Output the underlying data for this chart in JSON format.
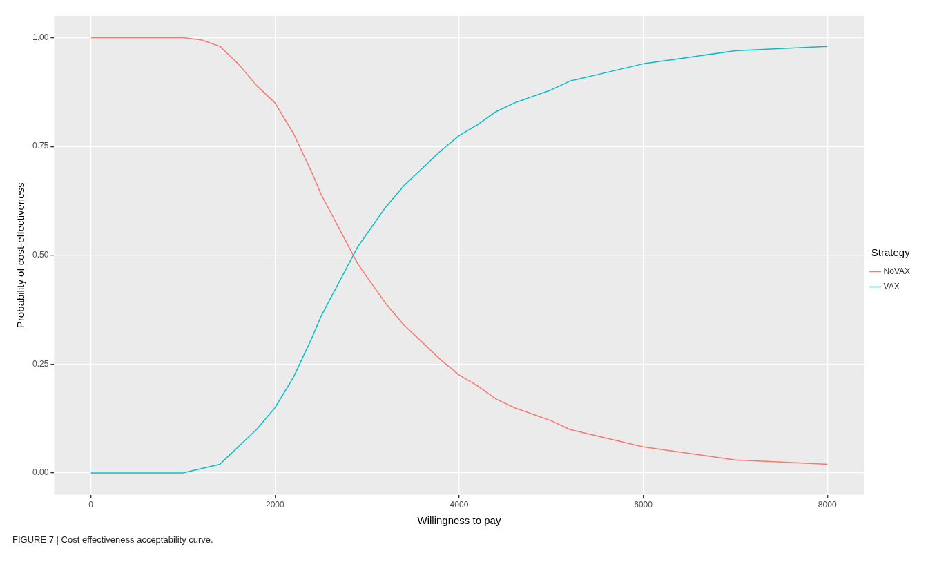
{
  "chart_data": {
    "type": "line",
    "xlabel": "Willingness to pay",
    "ylabel": "Probability of cost-effectiveness",
    "legend_title": "Strategy",
    "legend": "right",
    "grid": true,
    "annotations": [
      "FIGURE 7 | Cost effectiveness acceptability curve."
    ],
    "xlim": [
      -400,
      8400
    ],
    "ylim": [
      -0.05,
      1.05
    ],
    "xticks": [
      0,
      2000,
      4000,
      6000,
      8000
    ],
    "yticks": [
      {
        "value": 0,
        "label": "0.00"
      },
      {
        "value": 0.25,
        "label": "0.25"
      },
      {
        "value": 0.5,
        "label": "0.50"
      },
      {
        "value": 0.75,
        "label": "0.75"
      },
      {
        "value": 1,
        "label": "1.00"
      }
    ],
    "x": [
      0,
      1000,
      1200,
      1400,
      1500,
      1600,
      1800,
      2000,
      2200,
      2400,
      2500,
      2600,
      2700,
      2800,
      2900,
      3000,
      3200,
      3400,
      3600,
      3800,
      4000,
      4200,
      4400,
      4600,
      4800,
      5000,
      5200,
      5500,
      6000,
      6500,
      7000,
      7500,
      8000
    ],
    "series": [
      {
        "name": "NoVAX",
        "color": "#f8766d",
        "values": [
          1,
          1,
          0.995,
          0.98,
          0.96,
          0.94,
          0.89,
          0.85,
          0.78,
          0.69,
          0.64,
          0.6,
          0.56,
          0.52,
          0.48,
          0.45,
          0.39,
          0.34,
          0.3,
          0.26,
          0.225,
          0.2,
          0.17,
          0.15,
          0.135,
          0.12,
          0.1,
          0.085,
          0.06,
          0.045,
          0.03,
          0.025,
          0.02
        ]
      },
      {
        "name": "VAX",
        "color": "#00bfc4",
        "values": [
          0,
          0,
          0.01,
          0.02,
          0.04,
          0.06,
          0.1,
          0.15,
          0.22,
          0.31,
          0.36,
          0.4,
          0.44,
          0.48,
          0.52,
          0.55,
          0.61,
          0.66,
          0.7,
          0.74,
          0.775,
          0.8,
          0.83,
          0.85,
          0.865,
          0.88,
          0.9,
          0.915,
          0.94,
          0.955,
          0.97,
          0.975,
          0.98
        ]
      }
    ]
  }
}
